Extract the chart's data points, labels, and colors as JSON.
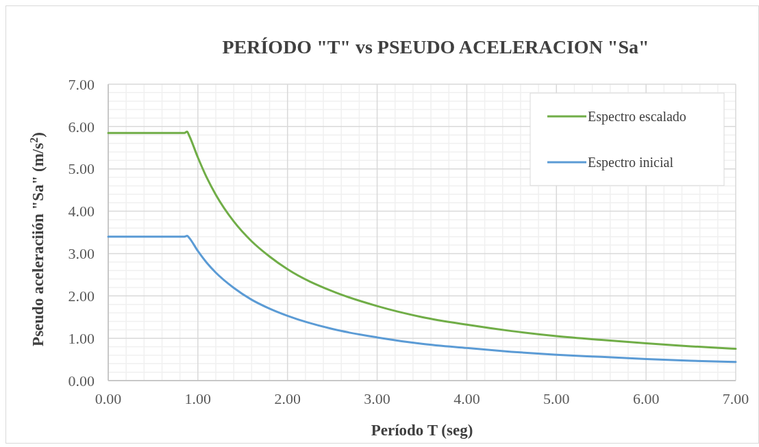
{
  "chart_data": {
    "type": "line",
    "title": "PERÍODO \"T\" vs PSEUDO ACELERACION \"Sa\"",
    "xlabel": "Período T (seg)",
    "ylabel": "Pseudo aceleraciión \"Sa\" (m/s$^{2}$)",
    "x": [
      0,
      0.85,
      0.88,
      0.9,
      1.0,
      1.1,
      1.2,
      1.4,
      1.6,
      1.8,
      2,
      2.5,
      3,
      3.5,
      4,
      4.5,
      5,
      5.5,
      6,
      6.5,
      7
    ],
    "series": [
      {
        "name": "Espectro escalado",
        "color": "#70ad47",
        "values": [
          5.85,
          5.85,
          5.88,
          5.8,
          5.27,
          4.79,
          4.39,
          3.76,
          3.29,
          2.93,
          2.63,
          2.11,
          1.76,
          1.5,
          1.32,
          1.17,
          1.05,
          0.96,
          0.88,
          0.81,
          0.75
        ]
      },
      {
        "name": "Espectro inicial",
        "color": "#5b9bd5",
        "values": [
          3.4,
          3.4,
          3.42,
          3.38,
          3.06,
          2.78,
          2.55,
          2.19,
          1.91,
          1.7,
          1.53,
          1.22,
          1.02,
          0.87,
          0.77,
          0.68,
          0.61,
          0.56,
          0.51,
          0.47,
          0.44
        ]
      }
    ],
    "xlim": [
      0,
      7
    ],
    "ylim": [
      0,
      7
    ],
    "xticks": [
      {
        "value": 0,
        "label": "0.00"
      },
      {
        "value": 1,
        "label": "1.00"
      },
      {
        "value": 2,
        "label": "2.00"
      },
      {
        "value": 3,
        "label": "3.00"
      },
      {
        "value": 4,
        "label": "4.00"
      },
      {
        "value": 5,
        "label": "5.00"
      },
      {
        "value": 6,
        "label": "6.00"
      },
      {
        "value": 7,
        "label": "7.00"
      }
    ],
    "yticks": [
      {
        "value": 0,
        "label": "0.00"
      },
      {
        "value": 1,
        "label": "1.00"
      },
      {
        "value": 2,
        "label": "2.00"
      },
      {
        "value": 3,
        "label": "3.00"
      },
      {
        "value": 4,
        "label": "4.00"
      },
      {
        "value": 5,
        "label": "5.00"
      },
      {
        "value": 6,
        "label": "6.00"
      },
      {
        "value": 7,
        "label": "7.00"
      }
    ],
    "grid": true,
    "legend": "top right",
    "marker": "none",
    "line_style": "solid"
  }
}
